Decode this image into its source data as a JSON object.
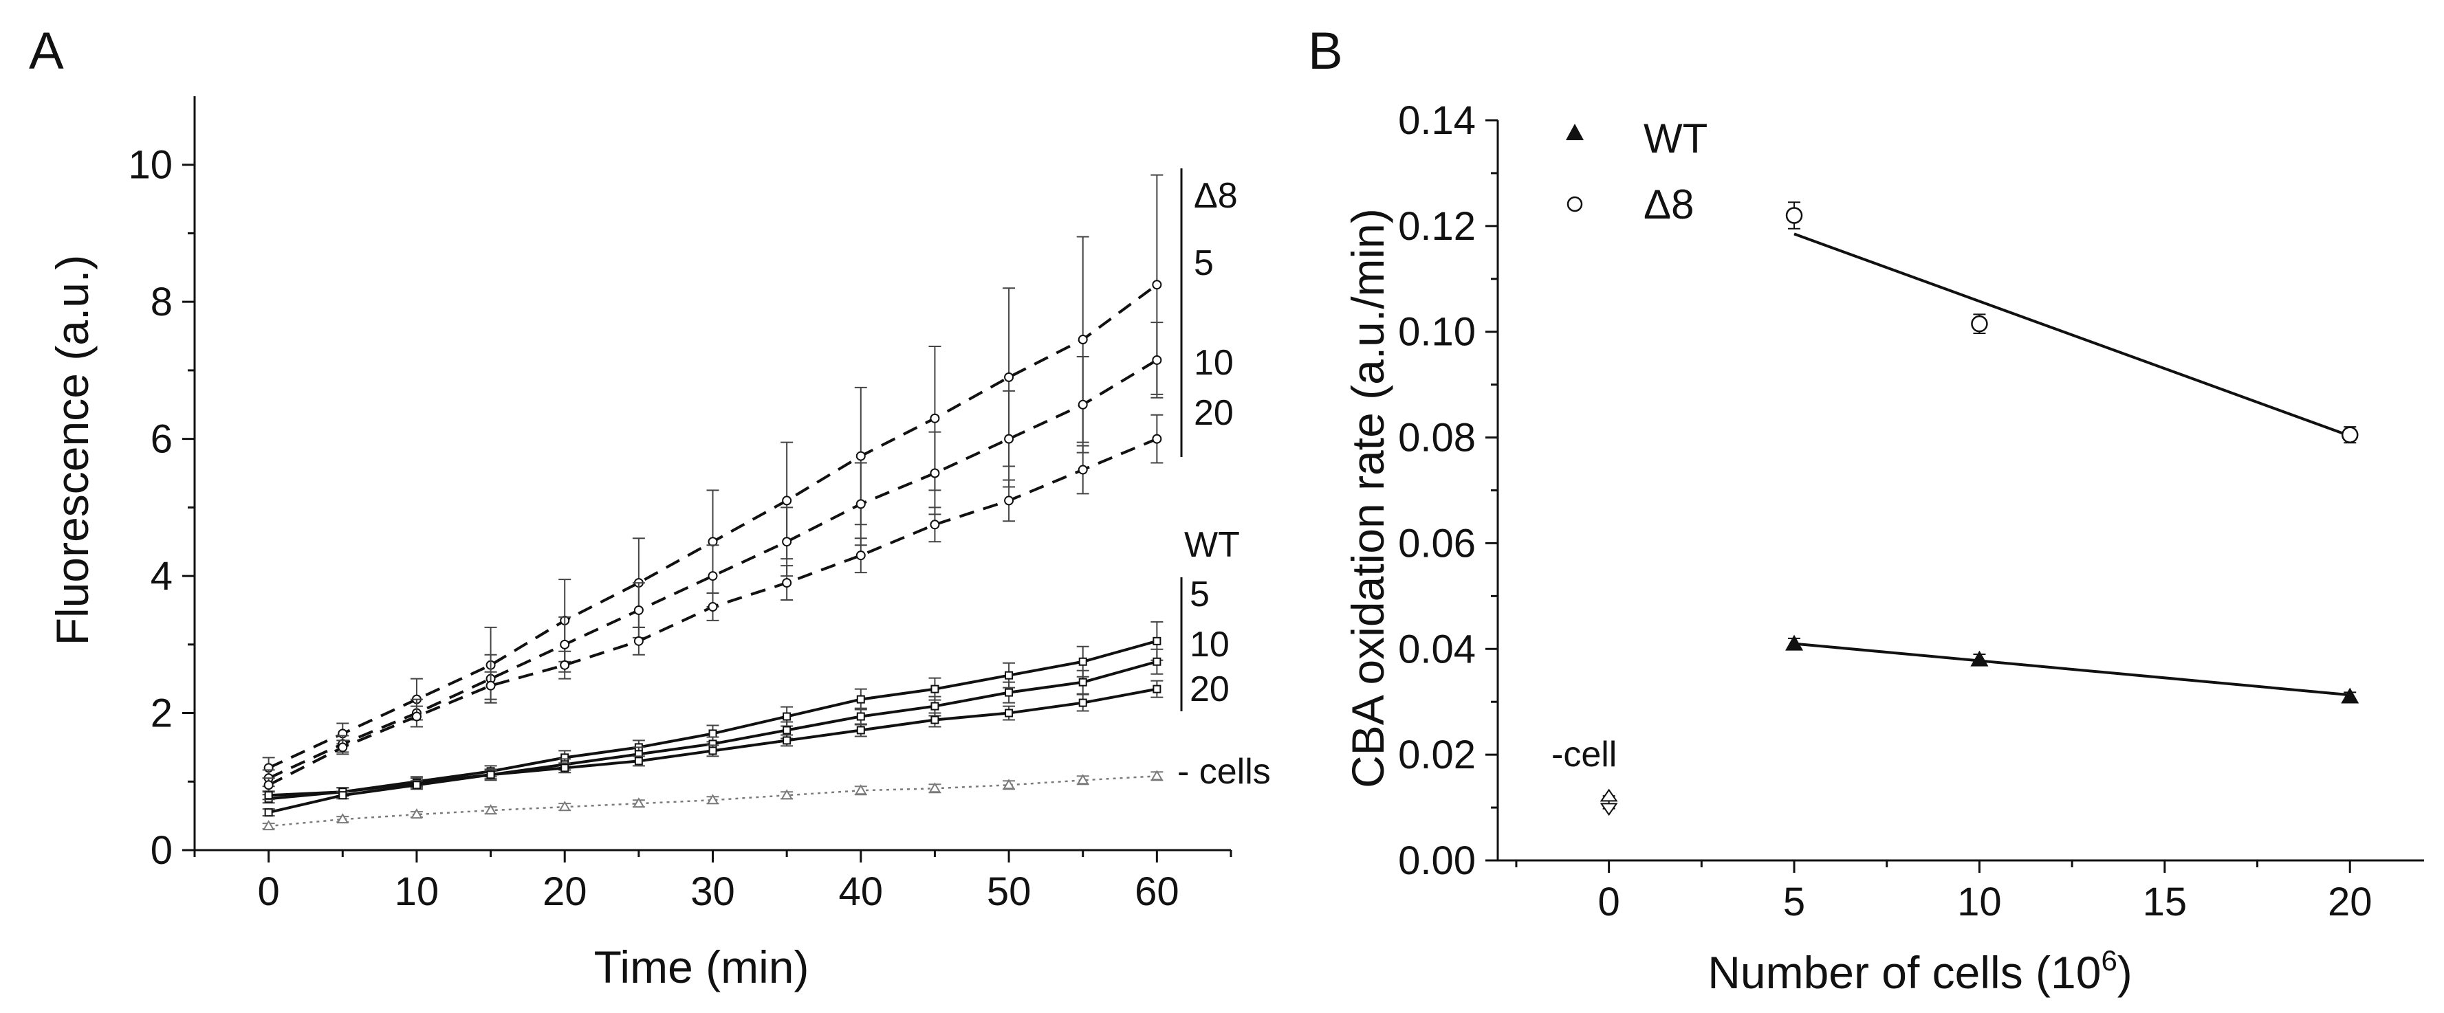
{
  "panel_a": {
    "letter": "A",
    "group_label_d8": "Δ8",
    "group_label_wt": "WT",
    "d8_conc_labels": [
      "5",
      "10",
      "20"
    ],
    "wt_conc_labels": [
      "5",
      "10",
      "20"
    ],
    "no_cells_label": "- cells"
  },
  "panel_b": {
    "letter": "B",
    "no_cell_label": "-cell",
    "xlabel_sup": "6",
    "xlabel_close": ")"
  },
  "colors": {
    "ink": "#111111",
    "dotted": "#7a7a7a",
    "errorbar": "#444444"
  },
  "chart_data": [
    {
      "type": "line",
      "title": "",
      "xlabel": "Time (min)",
      "ylabel": "Fluorescence (a.u.)",
      "xlim": [
        -5,
        65
      ],
      "ylim": [
        0,
        11
      ],
      "xticks": [
        0,
        10,
        20,
        30,
        40,
        50,
        60
      ],
      "yticks": [
        0,
        2,
        4,
        6,
        8,
        10
      ],
      "grid": false,
      "x": [
        0,
        5,
        10,
        15,
        20,
        25,
        30,
        35,
        40,
        45,
        50,
        55,
        60
      ],
      "series": [
        {
          "name": "Δ8 5",
          "style": "dashed",
          "marker": "circle",
          "values": [
            1.2,
            1.7,
            2.2,
            2.7,
            3.35,
            3.9,
            4.5,
            5.1,
            5.75,
            6.3,
            6.9,
            7.45,
            8.25
          ],
          "errors": [
            0.15,
            0.15,
            0.3,
            0.55,
            0.6,
            0.65,
            0.75,
            0.85,
            1.0,
            1.05,
            1.3,
            1.5,
            1.6
          ]
        },
        {
          "name": "Δ8 10",
          "style": "dashed",
          "marker": "circle",
          "values": [
            1.05,
            1.55,
            2.0,
            2.5,
            3.0,
            3.5,
            4.0,
            4.5,
            5.05,
            5.5,
            6.0,
            6.5,
            7.15
          ],
          "errors": [
            0.12,
            0.12,
            0.2,
            0.35,
            0.4,
            0.4,
            0.45,
            0.5,
            0.6,
            0.6,
            0.7,
            0.7,
            0.55
          ]
        },
        {
          "name": "Δ8 20",
          "style": "dashed",
          "marker": "circle",
          "values": [
            0.95,
            1.5,
            1.95,
            2.4,
            2.7,
            3.05,
            3.55,
            3.9,
            4.3,
            4.75,
            5.1,
            5.55,
            6.0
          ],
          "errors": [
            0.1,
            0.1,
            0.15,
            0.2,
            0.2,
            0.2,
            0.2,
            0.25,
            0.25,
            0.25,
            0.3,
            0.35,
            0.35
          ]
        },
        {
          "name": "WT 5",
          "style": "solid",
          "marker": "square",
          "values": [
            0.75,
            0.85,
            1.0,
            1.15,
            1.35,
            1.5,
            1.7,
            1.95,
            2.2,
            2.35,
            2.55,
            2.75,
            3.05
          ],
          "errors": [
            0.06,
            0.06,
            0.07,
            0.08,
            0.1,
            0.1,
            0.12,
            0.14,
            0.15,
            0.16,
            0.18,
            0.22,
            0.28
          ]
        },
        {
          "name": "WT 10",
          "style": "solid",
          "marker": "square",
          "values": [
            0.8,
            0.85,
            0.98,
            1.1,
            1.25,
            1.4,
            1.55,
            1.75,
            1.95,
            2.1,
            2.3,
            2.45,
            2.75
          ],
          "errors": [
            0.06,
            0.06,
            0.07,
            0.08,
            0.08,
            0.1,
            0.1,
            0.12,
            0.12,
            0.14,
            0.15,
            0.17,
            0.18
          ]
        },
        {
          "name": "WT 20",
          "style": "solid",
          "marker": "square",
          "values": [
            0.55,
            0.8,
            0.95,
            1.1,
            1.2,
            1.3,
            1.45,
            1.6,
            1.75,
            1.9,
            2.0,
            2.15,
            2.35
          ],
          "errors": [
            0.05,
            0.05,
            0.06,
            0.06,
            0.07,
            0.07,
            0.08,
            0.08,
            0.09,
            0.1,
            0.1,
            0.12,
            0.12
          ]
        },
        {
          "name": "- cells",
          "style": "dotted",
          "marker": "triangle",
          "values": [
            0.35,
            0.45,
            0.52,
            0.58,
            0.63,
            0.68,
            0.73,
            0.8,
            0.87,
            0.9,
            0.95,
            1.02,
            1.08
          ],
          "errors": [
            0.04,
            0.04,
            0.04,
            0.05,
            0.05,
            0.05,
            0.05,
            0.05,
            0.06,
            0.06,
            0.06,
            0.06,
            0.06
          ]
        }
      ]
    },
    {
      "type": "scatter",
      "title": "",
      "xlabel": "Number of cells (10",
      "ylabel": "CBA oxidation rate (a.u./min)",
      "xlim": [
        -3,
        22
      ],
      "ylim": [
        0,
        0.14
      ],
      "xticks": [
        0,
        5,
        10,
        15,
        20
      ],
      "yticks": [
        0.0,
        0.02,
        0.04,
        0.06,
        0.08,
        0.1,
        0.12,
        0.14
      ],
      "ytick_labels": [
        "0.00",
        "0.02",
        "0.04",
        "0.06",
        "0.08",
        "0.10",
        "0.12",
        "0.14"
      ],
      "grid": false,
      "legend": {
        "position": "top-left",
        "entries": [
          "WT",
          "Δ8"
        ]
      },
      "series": [
        {
          "name": "WT",
          "marker": "filled-triangle",
          "x": [
            5,
            10,
            20
          ],
          "values": [
            0.041,
            0.038,
            0.031
          ],
          "errors": [
            0.001,
            0.001,
            0.0008
          ],
          "fit": {
            "x": [
              5,
              20
            ],
            "y": [
              0.041,
              0.0313
            ]
          }
        },
        {
          "name": "Δ8",
          "marker": "open-circle",
          "x": [
            5,
            10,
            20
          ],
          "values": [
            0.122,
            0.1015,
            0.0805
          ],
          "errors": [
            0.0025,
            0.0018,
            0.0015
          ],
          "fit": {
            "x": [
              5,
              20
            ],
            "y": [
              0.1185,
              0.0803
            ]
          }
        },
        {
          "name": "-cell",
          "marker": "open-triangles",
          "x": [
            0
          ],
          "values": [
            0.011
          ],
          "errors": [
            0.0012
          ]
        }
      ]
    }
  ]
}
